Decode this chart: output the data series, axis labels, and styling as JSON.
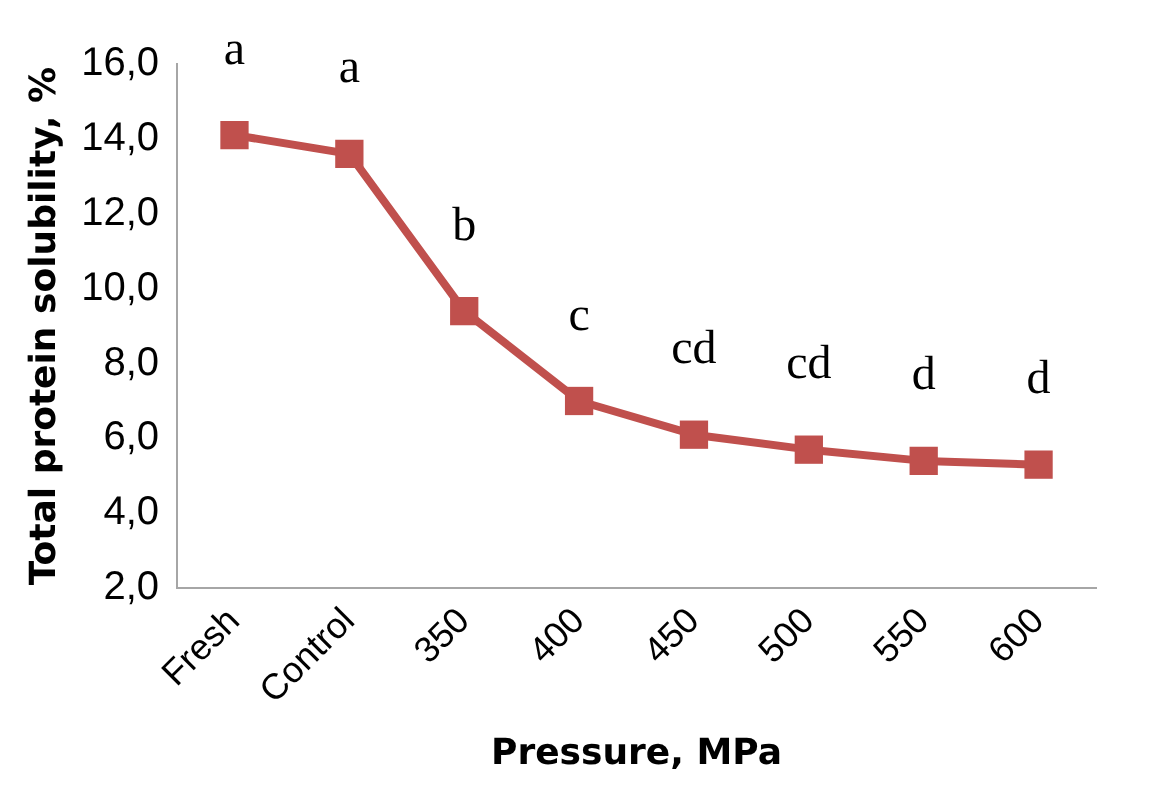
{
  "chart_data": {
    "type": "line",
    "xlabel": "Pressure, MPa",
    "ylabel": "Total protein solubility, %",
    "categories": [
      "Fresh",
      "Control",
      "350",
      "400",
      "450",
      "500",
      "550",
      "600"
    ],
    "series": [
      {
        "color": "#c0504d",
        "values": [
          14.1,
          13.6,
          9.4,
          7.0,
          6.1,
          5.7,
          5.4,
          5.3
        ]
      }
    ],
    "ylim": [
      2,
      16
    ],
    "yticks": [
      {
        "value": 2,
        "label": "2,0"
      },
      {
        "value": 4,
        "label": "4,0"
      },
      {
        "value": 6,
        "label": "6,0"
      },
      {
        "value": 8,
        "label": "8,0"
      },
      {
        "value": 10,
        "label": "10,0"
      },
      {
        "value": 12,
        "label": "12,0"
      },
      {
        "value": 14,
        "label": "14,0"
      },
      {
        "value": 16,
        "label": "16,0"
      }
    ],
    "marker": "square",
    "line_style": "solid",
    "grid": false,
    "legend": false,
    "annotations": [
      "a",
      "a",
      "b",
      "c",
      "cd",
      "cd",
      "d",
      "d"
    ]
  }
}
